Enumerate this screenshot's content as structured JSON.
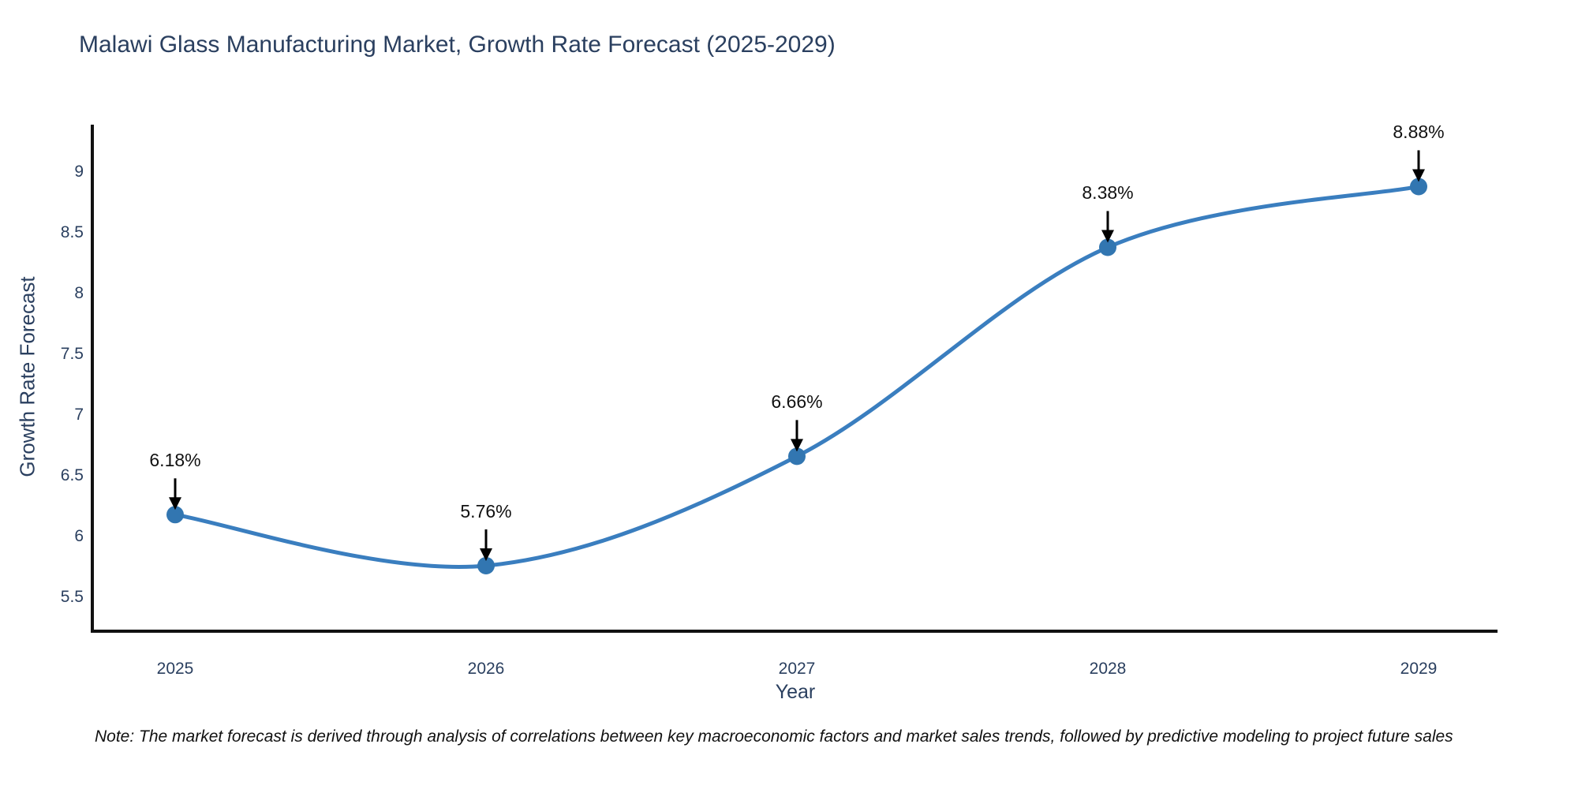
{
  "title": "Malawi Glass Manufacturing Market, Growth Rate Forecast (2025-2029)",
  "note": "Note: The market forecast is derived through analysis of correlations between key macroeconomic factors and market sales trends, followed by predictive modeling to project future sales",
  "chart_data": {
    "type": "line",
    "title": "Malawi Glass Manufacturing Market, Growth Rate Forecast (2025-2029)",
    "x": [
      2025,
      2026,
      2027,
      2028,
      2029
    ],
    "x_tick_labels": [
      "2025",
      "2026",
      "2027",
      "2028",
      "2029"
    ],
    "series": [
      {
        "name": "Growth Rate Forecast",
        "values": [
          6.18,
          5.76,
          6.66,
          8.38,
          8.88
        ]
      }
    ],
    "point_labels": [
      "6.18%",
      "5.76%",
      "6.66%",
      "8.38%",
      "8.88%"
    ],
    "xlabel": "Year",
    "ylabel": "Growth Rate Forecast",
    "y_ticks": [
      5.5,
      6,
      6.5,
      7,
      7.5,
      8,
      8.5,
      9
    ],
    "ylim": [
      5.22,
      9.45
    ],
    "grid": false,
    "legend_position": "none",
    "line_color": "#3a7ebf",
    "marker_color": "#3276b1",
    "arrow_color": "#000000",
    "axis_color": "#111111",
    "tick_color": "#2a3f5f"
  }
}
